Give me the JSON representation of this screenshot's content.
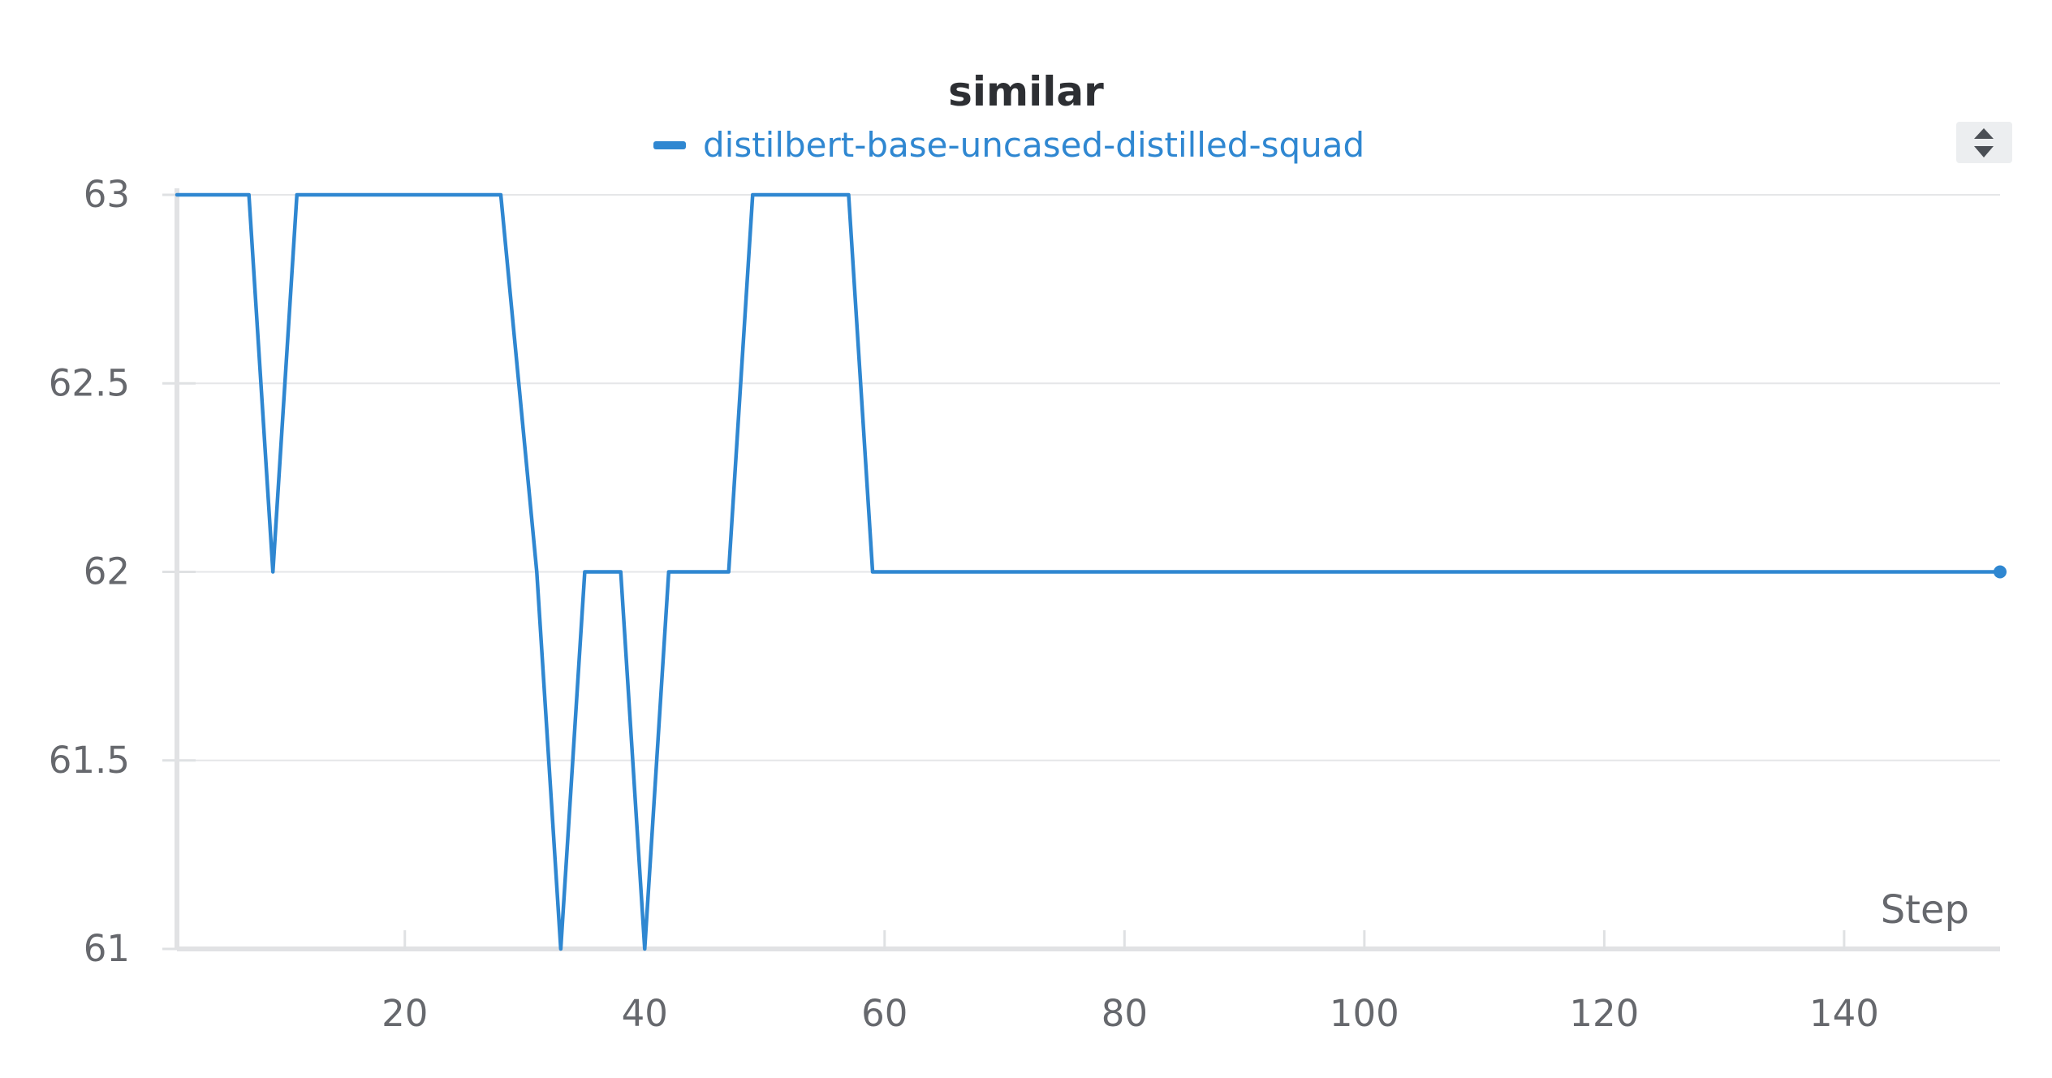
{
  "chart_data": {
    "type": "line",
    "title": "similar",
    "xlabel": "Step",
    "ylabel": "",
    "xlim": [
      1,
      153
    ],
    "ylim": [
      61,
      63
    ],
    "x_ticks": [
      20,
      40,
      60,
      80,
      100,
      120,
      140
    ],
    "y_ticks": [
      61,
      61.5,
      62,
      62.5,
      63
    ],
    "grid": true,
    "legend_position": "top-center",
    "series": [
      {
        "name": "distilbert-base-uncased-distilled-squad",
        "color": "#2f87d1",
        "points": [
          [
            1,
            63
          ],
          [
            7,
            63
          ],
          [
            9,
            62
          ],
          [
            11,
            63
          ],
          [
            28,
            63
          ],
          [
            31,
            62
          ],
          [
            33,
            61
          ],
          [
            35,
            62
          ],
          [
            38,
            62
          ],
          [
            40,
            61
          ],
          [
            42,
            62
          ],
          [
            47,
            62
          ],
          [
            49,
            63
          ],
          [
            57,
            63
          ],
          [
            59,
            62
          ],
          [
            153,
            62
          ]
        ]
      }
    ]
  },
  "ui": {
    "legend_line_icon": "legend-line",
    "controls_icon": "sort-arrows-icon"
  }
}
